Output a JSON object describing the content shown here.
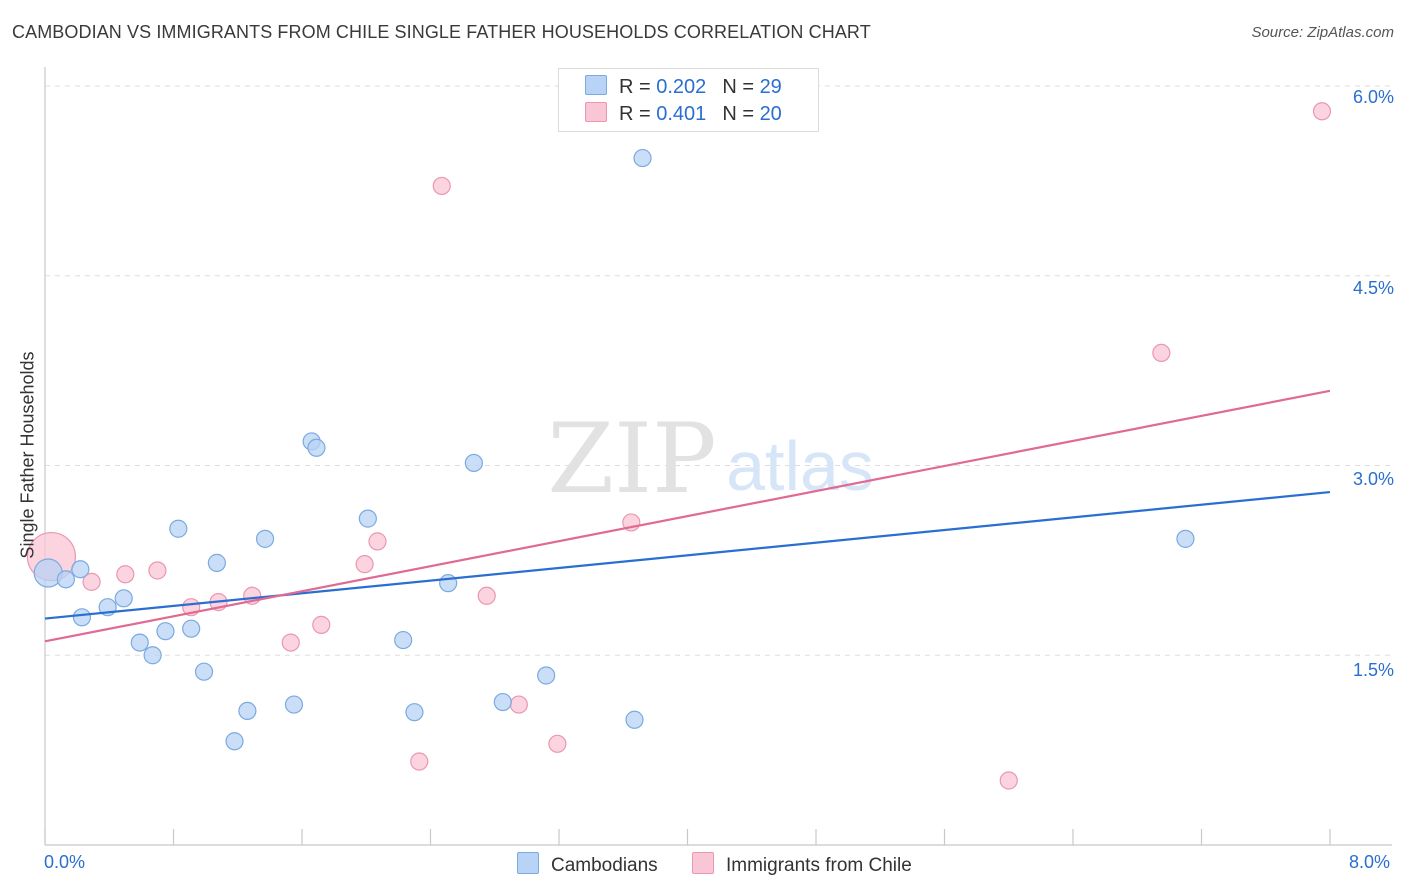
{
  "title": "CAMBODIAN VS IMMIGRANTS FROM CHILE SINGLE FATHER HOUSEHOLDS CORRELATION CHART",
  "source": "Source: ZipAtlas.com",
  "watermark": {
    "zip": "ZIP",
    "atlas": "atlas"
  },
  "legend": {
    "rows": [
      {
        "r_label": "R = ",
        "r_value": "0.202",
        "n_label": "N = ",
        "n_value": "29"
      },
      {
        "r_label": "R = ",
        "r_value": "0.401",
        "n_label": "N = ",
        "n_value": "20"
      }
    ]
  },
  "colors": {
    "blue_fill": "#b8d3f5",
    "blue_stroke": "#7aaae0",
    "blue_line": "#2a6fcf",
    "pink_fill": "#f9c6d5",
    "pink_stroke": "#eb96b2",
    "pink_line": "#e06a93",
    "tick_text": "#2a6fcf",
    "grid": "#dddddd"
  },
  "chart_data": {
    "type": "scatter",
    "title": "CAMBODIAN VS IMMIGRANTS FROM CHILE SINGLE FATHER HOUSEHOLDS CORRELATION CHART",
    "xlabel": "",
    "ylabel": "Single Father Households",
    "xlim": [
      0,
      8
    ],
    "ylim": [
      0,
      6.15
    ],
    "x_tick_labels": [
      "0.0%",
      "8.0%"
    ],
    "y_ticks": [
      1.5,
      3.0,
      4.5,
      6.0
    ],
    "y_tick_labels": [
      "1.5%",
      "3.0%",
      "4.5%",
      "6.0%"
    ],
    "grid": true,
    "series": [
      {
        "name": "Cambodians",
        "color": "#2a6fcf",
        "r": 0.202,
        "n": 29,
        "trend": {
          "x": [
            0,
            8
          ],
          "y": [
            1.79,
            2.79
          ]
        },
        "points": [
          {
            "x": 0.02,
            "y": 2.15,
            "size": 14
          },
          {
            "x": 0.13,
            "y": 2.1
          },
          {
            "x": 0.22,
            "y": 2.18
          },
          {
            "x": 0.23,
            "y": 1.8
          },
          {
            "x": 0.39,
            "y": 1.88
          },
          {
            "x": 0.49,
            "y": 1.95
          },
          {
            "x": 0.59,
            "y": 1.6
          },
          {
            "x": 0.67,
            "y": 1.5
          },
          {
            "x": 0.75,
            "y": 1.69
          },
          {
            "x": 0.83,
            "y": 2.5
          },
          {
            "x": 0.91,
            "y": 1.71
          },
          {
            "x": 0.99,
            "y": 1.37
          },
          {
            "x": 1.07,
            "y": 2.23
          },
          {
            "x": 1.18,
            "y": 0.82
          },
          {
            "x": 1.26,
            "y": 1.06
          },
          {
            "x": 1.37,
            "y": 2.42
          },
          {
            "x": 1.55,
            "y": 1.11
          },
          {
            "x": 1.66,
            "y": 3.19
          },
          {
            "x": 1.69,
            "y": 3.14
          },
          {
            "x": 2.01,
            "y": 2.58
          },
          {
            "x": 2.23,
            "y": 1.62
          },
          {
            "x": 2.3,
            "y": 1.05
          },
          {
            "x": 2.51,
            "y": 2.07
          },
          {
            "x": 2.67,
            "y": 3.02
          },
          {
            "x": 2.85,
            "y": 1.13
          },
          {
            "x": 3.12,
            "y": 1.34
          },
          {
            "x": 3.67,
            "y": 0.99
          },
          {
            "x": 3.72,
            "y": 5.43
          },
          {
            "x": 7.1,
            "y": 2.42
          }
        ]
      },
      {
        "name": "Immigrants from Chile",
        "color": "#e06a93",
        "r": 0.401,
        "n": 20,
        "trend": {
          "x": [
            0,
            8
          ],
          "y": [
            1.61,
            3.59
          ]
        },
        "points": [
          {
            "x": 0.04,
            "y": 2.28,
            "size": 24
          },
          {
            "x": 0.29,
            "y": 2.08
          },
          {
            "x": 0.5,
            "y": 2.14
          },
          {
            "x": 0.7,
            "y": 2.17
          },
          {
            "x": 0.91,
            "y": 1.88
          },
          {
            "x": 1.08,
            "y": 1.92
          },
          {
            "x": 1.29,
            "y": 1.97
          },
          {
            "x": 1.53,
            "y": 1.6
          },
          {
            "x": 1.72,
            "y": 1.74
          },
          {
            "x": 1.99,
            "y": 2.22
          },
          {
            "x": 2.07,
            "y": 2.4
          },
          {
            "x": 2.33,
            "y": 0.66
          },
          {
            "x": 2.47,
            "y": 5.21
          },
          {
            "x": 2.75,
            "y": 1.97
          },
          {
            "x": 2.95,
            "y": 1.11
          },
          {
            "x": 3.19,
            "y": 0.8
          },
          {
            "x": 3.65,
            "y": 2.55
          },
          {
            "x": 6.0,
            "y": 0.51
          },
          {
            "x": 6.95,
            "y": 3.89
          },
          {
            "x": 7.95,
            "y": 5.8
          }
        ]
      }
    ]
  }
}
